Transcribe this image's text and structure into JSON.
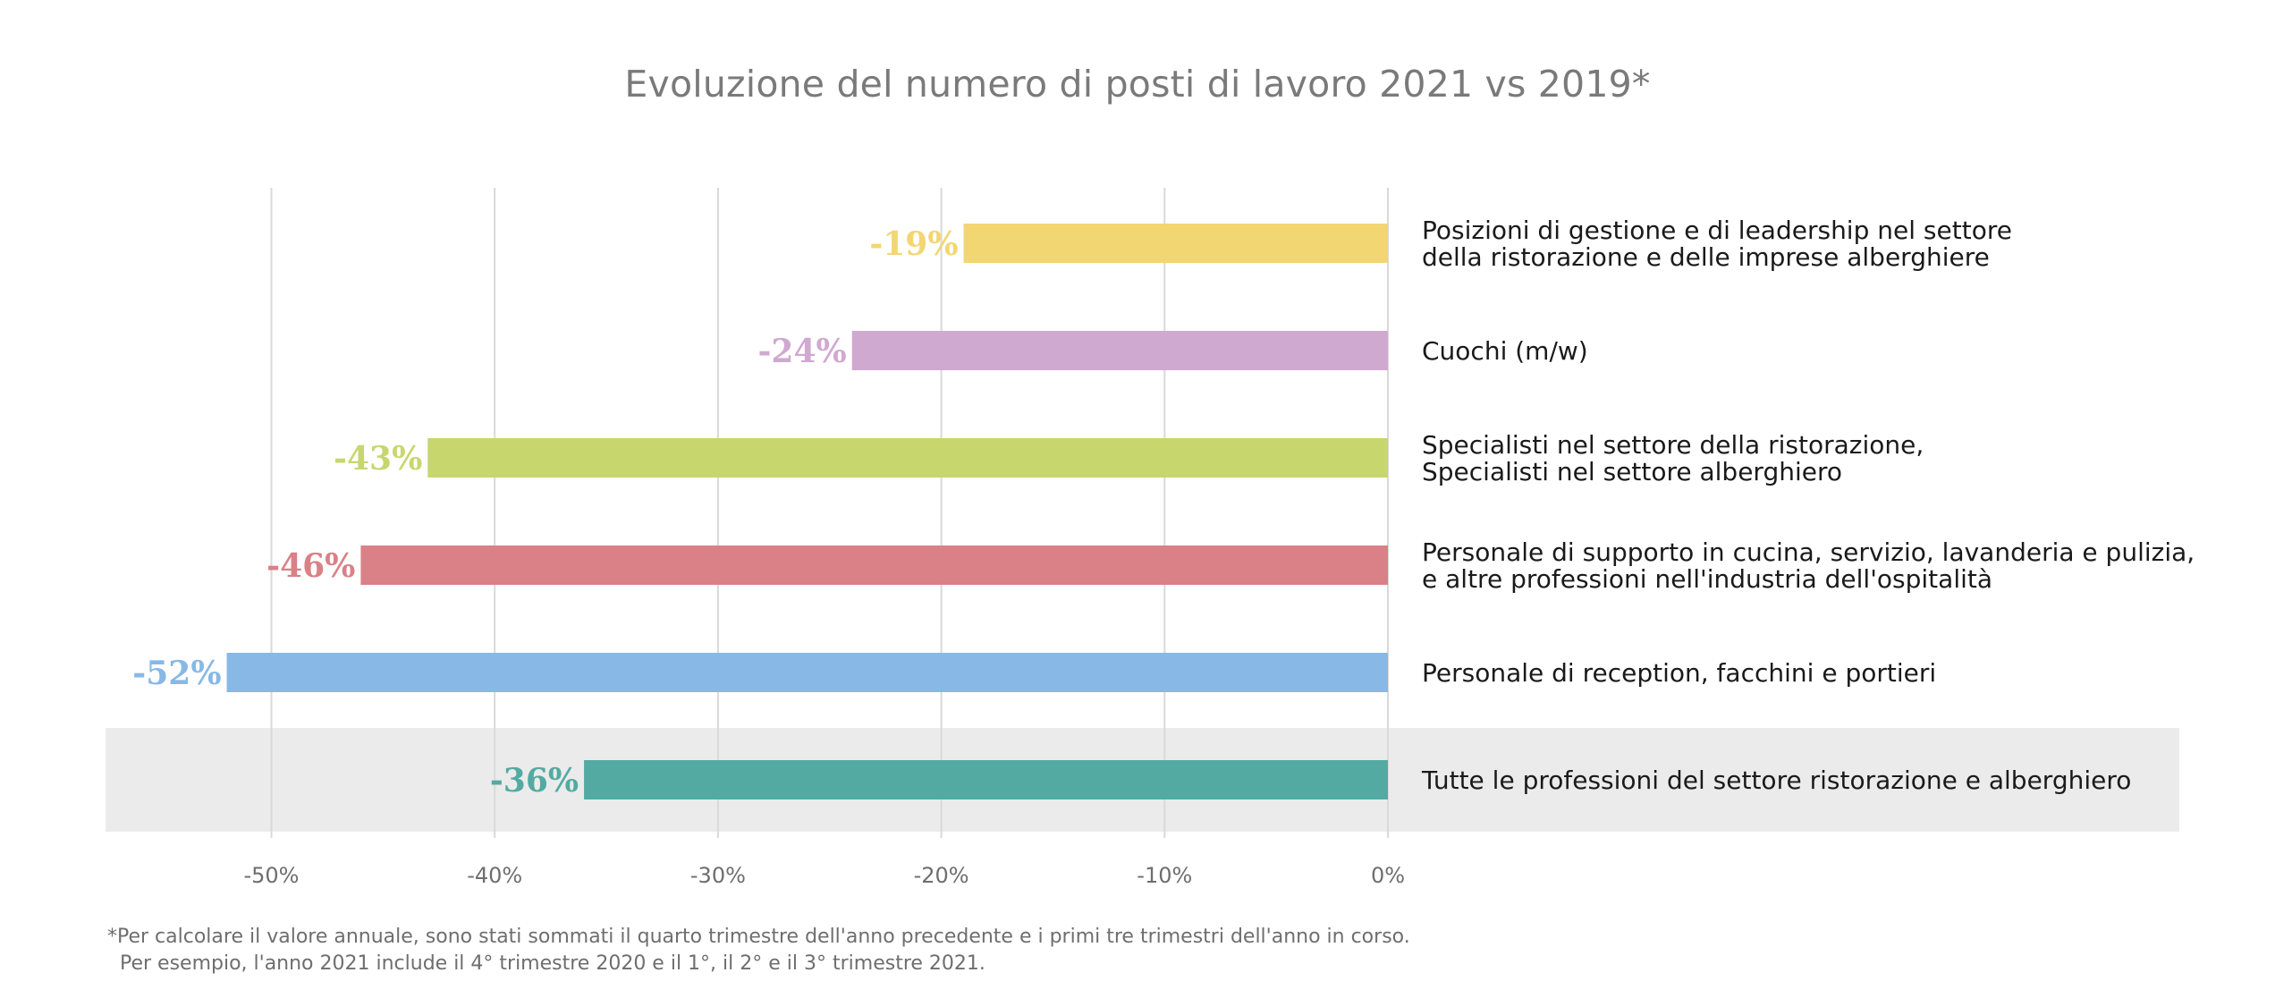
{
  "chart_data": {
    "type": "bar",
    "orientation": "horizontal",
    "title": "Evoluzione del numero di posti di lavoro 2021 vs 2019*",
    "xlabel": "",
    "ylabel": "",
    "xlim": [
      -57.5,
      0
    ],
    "grid": true,
    "legend": "none",
    "x_ticks": [
      {
        "value": -50,
        "label": "-50%"
      },
      {
        "value": -40,
        "label": "-40%"
      },
      {
        "value": -30,
        "label": "-30%"
      },
      {
        "value": -20,
        "label": "-20%"
      },
      {
        "value": -10,
        "label": "-10%"
      },
      {
        "value": 0,
        "label": "0%"
      }
    ],
    "bars": [
      {
        "lines": [
          "Posizioni di gestione e di leadership nel settore",
          "della ristorazione e delle imprese alberghiere"
        ],
        "value": -19,
        "label": "-19%",
        "color": "#f2d672",
        "highlight": false
      },
      {
        "lines": [
          "Cuochi (m/w)"
        ],
        "value": -24,
        "label": "-24%",
        "color": "#d0a9d0",
        "highlight": false
      },
      {
        "lines": [
          "Specialisti nel settore della ristorazione,",
          "Specialisti nel settore alberghiero"
        ],
        "value": -43,
        "label": "-43%",
        "color": "#c7d76e",
        "highlight": false
      },
      {
        "lines": [
          "Personale di supporto in cucina, servizio, lavanderia e pulizia,",
          "e altre professioni nell'industria dell'ospitalità"
        ],
        "value": -46,
        "label": "-46%",
        "color": "#d98187",
        "highlight": false
      },
      {
        "lines": [
          "Personale di reception, facchini e portieri"
        ],
        "value": -52,
        "label": "-52%",
        "color": "#88b8e5",
        "highlight": false
      },
      {
        "lines": [
          "Tutte le professioni del settore ristorazione e alberghiero"
        ],
        "value": -36,
        "label": "-36%",
        "color": "#53aaa2",
        "highlight": true
      }
    ]
  },
  "colors": {
    "title": "#7a7a7a",
    "gridline": "#d9d9d9",
    "highlight_band": "#ebebeb",
    "category_text": "#1a1a1a",
    "tick_text": "#6e6e6e"
  },
  "footnote": {
    "line1": "*Per calcolare il valore annuale, sono stati sommati il quarto trimestre dell'anno precedente e i primi tre trimestri dell'anno in corso.",
    "line2": "  Per esempio, l'anno 2021 include il 4° trimestre 2020 e il 1°, il 2° e il 3° trimestre 2021."
  }
}
